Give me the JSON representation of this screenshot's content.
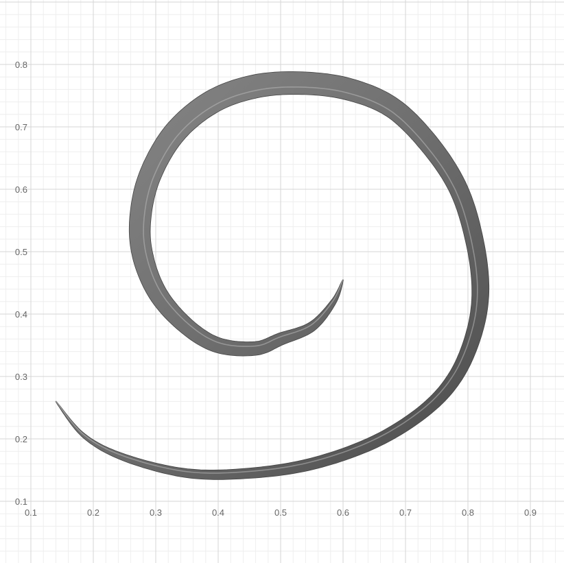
{
  "chart_data": {
    "type": "line",
    "title": "",
    "xlabel": "",
    "ylabel": "",
    "xlim": [
      0.1,
      0.95
    ],
    "ylim": [
      0.1,
      0.88
    ],
    "grid": true,
    "minor_grid": true,
    "x_ticks": [
      "0.1",
      "0.2",
      "0.3",
      "0.4",
      "0.5",
      "0.6",
      "0.7",
      "0.8",
      "0.9"
    ],
    "y_ticks": [
      "0.1",
      "0.2",
      "0.3",
      "0.4",
      "0.5",
      "0.6",
      "0.7",
      "0.8"
    ],
    "series": [
      {
        "style": "tapered-tube",
        "color": "#666666",
        "x": [
          0.6,
          0.585,
          0.55,
          0.5,
          0.46,
          0.4,
          0.35,
          0.305,
          0.28,
          0.275,
          0.29,
          0.33,
          0.39,
          0.46,
          0.535,
          0.61,
          0.68,
          0.74,
          0.785,
          0.81,
          0.82,
          0.81,
          0.78,
          0.73,
          0.65,
          0.55,
          0.45,
          0.35,
          0.25,
          0.185,
          0.14
        ],
        "y": [
          0.455,
          0.42,
          0.38,
          0.36,
          0.345,
          0.35,
          0.38,
          0.43,
          0.49,
          0.55,
          0.62,
          0.69,
          0.74,
          0.765,
          0.77,
          0.76,
          0.73,
          0.67,
          0.6,
          0.52,
          0.44,
          0.37,
          0.3,
          0.245,
          0.195,
          0.16,
          0.145,
          0.145,
          0.17,
          0.205,
          0.26
        ],
        "width": [
          1,
          8,
          14,
          18,
          20,
          22,
          24,
          27,
          30,
          31,
          32,
          33,
          34,
          34,
          33,
          32,
          30,
          29,
          27,
          26,
          25,
          23,
          21,
          19,
          18,
          17,
          15,
          13,
          10,
          6,
          1
        ]
      }
    ]
  }
}
